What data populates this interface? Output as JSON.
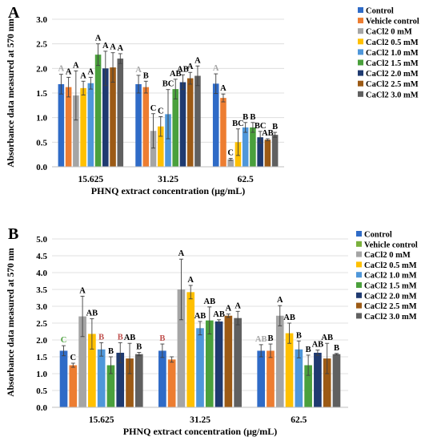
{
  "chart_data": [
    {
      "panel_label": "A",
      "type": "bar",
      "categories": [
        "15.625",
        "31.25",
        "62.5"
      ],
      "xlabel": "PHNQ extract concentration (μg/mL)",
      "ylabel": "Absorbance data measured at 570 nm",
      "ylim": [
        0,
        3.0
      ],
      "yticks": [
        "0.0",
        "0.5",
        "1.0",
        "1.5",
        "2.0",
        "2.5",
        "3.0"
      ],
      "legend": [
        "Control",
        "Vehicle control",
        "CaCl2 0 mM",
        "CaCl2 0.5 mM",
        "CaCl2 1.0 mM",
        "CaCl2 1.5 mM",
        "CaCl2 2.0 mM",
        "CaCl2 2.5 mM",
        "CaCl2 3.0 mM"
      ],
      "colors": [
        "#2f6bc7",
        "#ed7d31",
        "#a5a5a5",
        "#ffc000",
        "#4f97da",
        "#4aa03c",
        "#1f3a70",
        "#9c5a15",
        "#606060"
      ],
      "series": [
        {
          "values": [
            1.68,
            1.68,
            1.69
          ],
          "errors": [
            0.2,
            0.18,
            0.2
          ]
        },
        {
          "values": [
            1.62,
            1.62,
            1.4
          ],
          "errors": [
            0.2,
            0.12,
            0.08
          ]
        },
        {
          "values": [
            1.45,
            0.73,
            0.15
          ],
          "errors": [
            0.5,
            0.35,
            0.02
          ]
        },
        {
          "values": [
            1.6,
            0.82,
            0.5
          ],
          "errors": [
            0.14,
            0.2,
            0.27
          ]
        },
        {
          "values": [
            1.7,
            1.07,
            0.8
          ],
          "errors": [
            0.12,
            0.5,
            0.1
          ]
        },
        {
          "values": [
            2.28,
            1.58,
            0.8
          ],
          "errors": [
            0.22,
            0.2,
            0.1
          ]
        },
        {
          "values": [
            2.0,
            1.72,
            0.6
          ],
          "errors": [
            0.35,
            0.15,
            0.12
          ]
        },
        {
          "values": [
            2.02,
            1.8,
            0.55
          ],
          "errors": [
            0.3,
            0.12,
            0.02
          ]
        },
        {
          "values": [
            2.2,
            1.85,
            0.65
          ],
          "errors": [
            0.1,
            0.2,
            0.05
          ]
        }
      ],
      "annotations": [
        [
          "A",
          "A",
          "A"
        ],
        [
          "A",
          "B",
          "A"
        ],
        [
          "A",
          "C",
          "C"
        ],
        [
          "A",
          "C",
          "BC"
        ],
        [
          "A",
          "BC",
          "B"
        ],
        [
          "A",
          "AB",
          "B"
        ],
        [
          "A",
          "AB",
          "BC"
        ],
        [
          "A",
          "A",
          "AB"
        ],
        [
          "A",
          "A",
          "B"
        ]
      ],
      "annotation_colors": [
        [
          "#a5a5a5",
          "#a5a5a5",
          "#a5a5a5"
        ],
        [
          "#000000",
          "#000000",
          "#000000"
        ],
        [
          "#000000",
          "#000000",
          "#000000"
        ],
        [
          "#000000",
          "#000000",
          "#000000"
        ],
        [
          "#000000",
          "#000000",
          "#000000"
        ],
        [
          "#000000",
          "#000000",
          "#000000"
        ],
        [
          "#000000",
          "#000000",
          "#000000"
        ],
        [
          "#000000",
          "#000000",
          "#000000"
        ],
        [
          "#000000",
          "#000000",
          "#000000"
        ]
      ]
    },
    {
      "panel_label": "B",
      "type": "bar",
      "categories": [
        "15.625",
        "31.25",
        "62.5"
      ],
      "xlabel": "PHNQ extract concentration (μg/mL)",
      "ylabel": "Absorbance data measured at 570 nm",
      "ylim": [
        0,
        5.0
      ],
      "yticks": [
        "0.0",
        "0.5",
        "1.0",
        "1.5",
        "2.0",
        "2.5",
        "3.0",
        "3.5",
        "4.0",
        "4.5",
        "5.0"
      ],
      "legend": [
        "Control",
        "Vehicle control",
        "CaCl2 0 mM",
        "CaCl2 0.5 mM",
        "CaCl2 1.0 mM",
        "CaCl2 1.5 mM",
        "CaCl2 2.0 mM",
        "CaCl2 2.5 mM",
        "CaCl2 3.0 mM"
      ],
      "colors": [
        "#2f6bc7",
        "#ed7d31",
        "#a5a5a5",
        "#ffc000",
        "#4f97da",
        "#4aa03c",
        "#1f3a70",
        "#9c5a15",
        "#606060"
      ],
      "legend_colors": [
        "#2f6bc7",
        "#7ab03c",
        "#a5a5a5",
        "#ffc000",
        "#4f97da",
        "#4aa03c",
        "#1f3a70",
        "#9c5a15",
        "#606060"
      ],
      "series": [
        {
          "values": [
            1.68,
            1.68,
            1.68
          ],
          "errors": [
            0.15,
            0.2,
            0.18
          ]
        },
        {
          "values": [
            1.25,
            1.42,
            1.68
          ],
          "errors": [
            0.06,
            0.08,
            0.2
          ]
        },
        {
          "values": [
            2.7,
            3.5,
            2.72
          ],
          "errors": [
            0.6,
            0.9,
            0.3
          ]
        },
        {
          "values": [
            2.18,
            3.42,
            2.2
          ],
          "errors": [
            0.45,
            0.2,
            0.3
          ]
        },
        {
          "values": [
            1.72,
            2.35,
            1.72
          ],
          "errors": [
            0.2,
            0.2,
            0.25
          ]
        },
        {
          "values": [
            1.25,
            2.58,
            1.25
          ],
          "errors": [
            0.25,
            0.4,
            0.3
          ]
        },
        {
          "values": [
            1.62,
            2.55,
            1.62
          ],
          "errors": [
            0.3,
            0.05,
            0.08
          ]
        },
        {
          "values": [
            1.45,
            2.72,
            1.45
          ],
          "errors": [
            0.45,
            0.05,
            0.45
          ]
        },
        {
          "values": [
            1.58,
            2.65,
            1.58
          ],
          "errors": [
            0.05,
            0.2,
            0.02
          ]
        }
      ],
      "annotations": [
        [
          "C",
          "B",
          "AB"
        ],
        [
          "C",
          "",
          "B"
        ],
        [
          "A",
          "A",
          "A"
        ],
        [
          "AB",
          "A",
          "AB"
        ],
        [
          "B",
          "AB",
          "B"
        ],
        [
          "B",
          "AB",
          "B"
        ],
        [
          "B",
          "AB",
          "AB"
        ],
        [
          "AB",
          "A",
          "AB"
        ],
        [
          "B",
          "A",
          "B"
        ]
      ],
      "annotation_colors": [
        [
          "#4aa03c",
          "#c0504d",
          "#a5a5a5"
        ],
        [
          "#000000",
          "#000000",
          "#000000"
        ],
        [
          "#000000",
          "#000000",
          "#000000"
        ],
        [
          "#000000",
          "#000000",
          "#000000"
        ],
        [
          "#c0504d",
          "#000000",
          "#000000"
        ],
        [
          "#000000",
          "#000000",
          "#000000"
        ],
        [
          "#c0504d",
          "#000000",
          "#000000"
        ],
        [
          "#000000",
          "#000000",
          "#000000"
        ],
        [
          "#000000",
          "#000000",
          "#000000"
        ]
      ]
    }
  ]
}
